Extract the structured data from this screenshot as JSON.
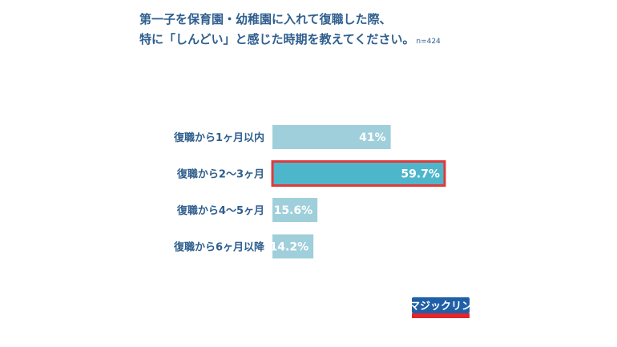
{
  "title": {
    "line1": "第一子を保育園・幼稚園に入れて復職した際、",
    "line2": "特に「しんどい」と感じた時期を教えてください。",
    "sample": "n=424"
  },
  "colors": {
    "bar": "#9fcfda",
    "highlight_bar": "#4eb6cb",
    "highlight_border": "#e03a3a",
    "text": "#2f5f8e"
  },
  "chart_data": {
    "type": "bar",
    "orientation": "horizontal",
    "categories": [
      "復職から1ヶ月以内",
      "復職から2〜3ヶ月",
      "復職から4〜5ヶ月",
      "復職から6ヶ月以降"
    ],
    "values": [
      41,
      59.7,
      15.6,
      14.2
    ],
    "value_labels": [
      "41%",
      "59.7%",
      "15.6%",
      "14.2%"
    ],
    "highlight_index": 1,
    "xlim": [
      0,
      100
    ]
  },
  "logo": {
    "text": "マジックリン",
    "icon": "magiclean-logo"
  }
}
